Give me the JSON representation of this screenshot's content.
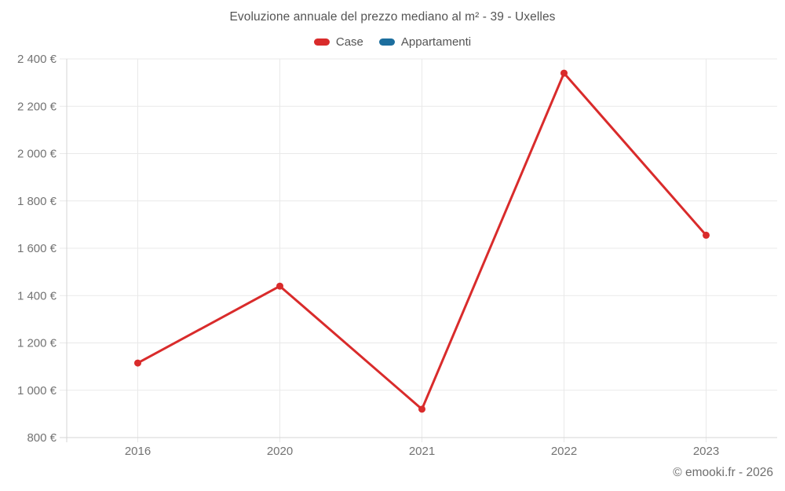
{
  "page": {
    "background": "#ffffff",
    "text_color": "#545454",
    "tick_label_color": "#737373",
    "grid_color": "#e9e9e9",
    "axis_color": "#d6d6d6"
  },
  "chart_data": {
    "type": "line",
    "title": "Evoluzione annuale del prezzo mediano al m² - 39 - Uxelles",
    "categories": [
      "2016",
      "2020",
      "2021",
      "2022",
      "2023"
    ],
    "series": [
      {
        "name": "Case",
        "color": "#d92b2b",
        "values": [
          1115,
          1440,
          920,
          2340,
          1655
        ]
      },
      {
        "name": "Appartamenti",
        "color": "#1c6e9e",
        "values": []
      }
    ],
    "ylim": [
      800,
      2400
    ],
    "ytick_step": 200,
    "yticks": [
      {
        "value": 800,
        "label": "800 €"
      },
      {
        "value": 1000,
        "label": "1 000 €"
      },
      {
        "value": 1200,
        "label": "1 200 €"
      },
      {
        "value": 1400,
        "label": "1 400 €"
      },
      {
        "value": 1600,
        "label": "1 600 €"
      },
      {
        "value": 1800,
        "label": "1 800 €"
      },
      {
        "value": 2000,
        "label": "2 000 €"
      },
      {
        "value": 2200,
        "label": "2 200 €"
      },
      {
        "value": 2400,
        "label": "2 400 €"
      }
    ],
    "grid": true,
    "legend_position": "top",
    "ylabel": "",
    "xlabel": ""
  },
  "footer": {
    "credit": "© emooki.fr - 2026"
  }
}
